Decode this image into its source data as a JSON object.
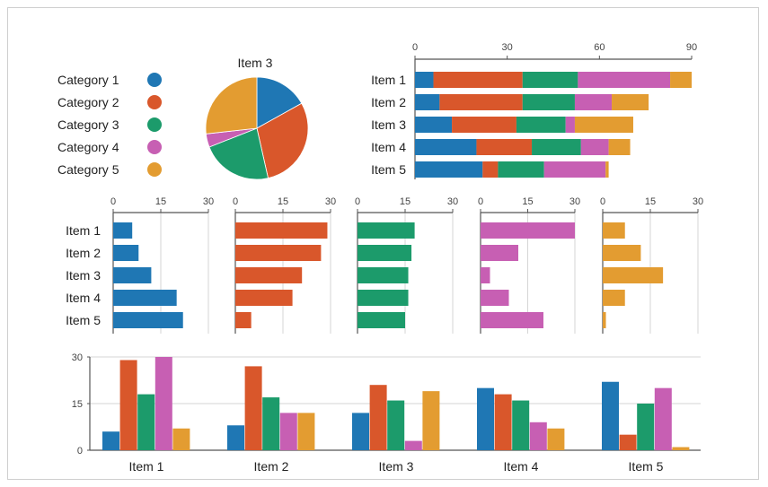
{
  "colors": [
    "#1f77b4",
    "#d9572b",
    "#1c9b6b",
    "#c75fb3",
    "#e39c31"
  ],
  "legend": {
    "entries": [
      "Category 1",
      "Category 2",
      "Category 3",
      "Category 4",
      "Category 5"
    ]
  },
  "chart_data": [
    {
      "type": "pie",
      "title": "Item 3",
      "labels": [
        "Category 1",
        "Category 2",
        "Category 3",
        "Category 4",
        "Category 5"
      ],
      "values": [
        12,
        21,
        16,
        3,
        19
      ]
    },
    {
      "type": "bar",
      "orientation": "horizontal",
      "stacked": true,
      "categories": [
        "Item 1",
        "Item 2",
        "Item 3",
        "Item 4",
        "Item 5"
      ],
      "xlim": [
        0,
        90
      ],
      "ticks": [
        "0",
        "30",
        "60",
        "90"
      ],
      "series": [
        {
          "name": "Category 1",
          "values": [
            6,
            8,
            12,
            20,
            22
          ]
        },
        {
          "name": "Category 2",
          "values": [
            29,
            27,
            21,
            18,
            5
          ]
        },
        {
          "name": "Category 3",
          "values": [
            18,
            17,
            16,
            16,
            15
          ]
        },
        {
          "name": "Category 4",
          "values": [
            30,
            12,
            3,
            9,
            20
          ]
        },
        {
          "name": "Category 5",
          "values": [
            7,
            12,
            19,
            7,
            1
          ]
        }
      ]
    },
    {
      "type": "bar",
      "orientation": "horizontal",
      "small_multiples": true,
      "categories": [
        "Item 1",
        "Item 2",
        "Item 3",
        "Item 4",
        "Item 5"
      ],
      "xlim": [
        0,
        30
      ],
      "ticks": [
        "0",
        "15",
        "30"
      ],
      "series": [
        {
          "name": "Category 1",
          "values": [
            6,
            8,
            12,
            20,
            22
          ]
        },
        {
          "name": "Category 2",
          "values": [
            29,
            27,
            21,
            18,
            5
          ]
        },
        {
          "name": "Category 3",
          "values": [
            18,
            17,
            16,
            16,
            15
          ]
        },
        {
          "name": "Category 4",
          "values": [
            30,
            12,
            3,
            9,
            20
          ]
        },
        {
          "name": "Category 5",
          "values": [
            7,
            12,
            19,
            7,
            1
          ]
        }
      ]
    },
    {
      "type": "bar",
      "orientation": "vertical",
      "grouped": true,
      "categories": [
        "Item 1",
        "Item 2",
        "Item 3",
        "Item 4",
        "Item 5"
      ],
      "ylim": [
        0,
        30
      ],
      "ticks": [
        "0",
        "15",
        "30"
      ],
      "grid": true,
      "series": [
        {
          "name": "Category 1",
          "values": [
            6,
            8,
            12,
            20,
            22
          ]
        },
        {
          "name": "Category 2",
          "values": [
            29,
            27,
            21,
            18,
            5
          ]
        },
        {
          "name": "Category 3",
          "values": [
            18,
            17,
            16,
            16,
            15
          ]
        },
        {
          "name": "Category 4",
          "values": [
            30,
            12,
            3,
            9,
            20
          ]
        },
        {
          "name": "Category 5",
          "values": [
            7,
            12,
            19,
            7,
            1
          ]
        }
      ]
    }
  ]
}
